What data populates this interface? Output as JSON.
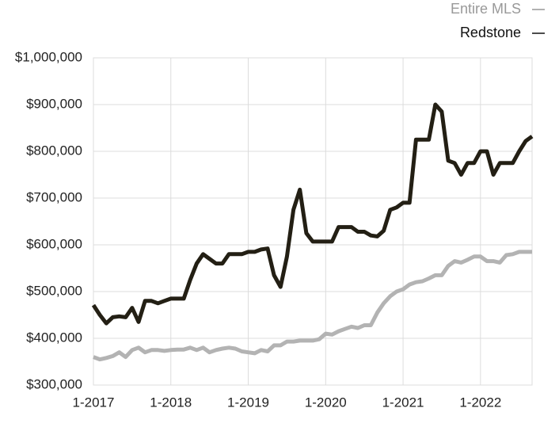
{
  "chart_data": {
    "type": "line",
    "categories": [
      "1-2017",
      null,
      null,
      null,
      null,
      null,
      null,
      null,
      null,
      null,
      null,
      null,
      "1-2018",
      null,
      null,
      null,
      null,
      null,
      null,
      null,
      null,
      null,
      null,
      null,
      "1-2019",
      null,
      null,
      null,
      null,
      null,
      null,
      null,
      null,
      null,
      null,
      null,
      "1-2020",
      null,
      null,
      null,
      null,
      null,
      null,
      null,
      null,
      null,
      null,
      null,
      "1-2021",
      null,
      null,
      null,
      null,
      null,
      null,
      null,
      null,
      null,
      null,
      null,
      "1-2022",
      null,
      null,
      null,
      null,
      null,
      null,
      null,
      null
    ],
    "series": [
      {
        "name": "Entire MLS",
        "color": "#b3b3b3",
        "values": [
          360000,
          355000,
          358000,
          362000,
          370000,
          360000,
          375000,
          380000,
          370000,
          375000,
          375000,
          373000,
          375000,
          376000,
          376000,
          380000,
          375000,
          380000,
          370000,
          375000,
          378000,
          380000,
          378000,
          372000,
          370000,
          368000,
          375000,
          372000,
          385000,
          385000,
          393000,
          393000,
          395000,
          395000,
          395000,
          398000,
          410000,
          408000,
          415000,
          420000,
          425000,
          422000,
          428000,
          428000,
          455000,
          475000,
          490000,
          500000,
          505000,
          515000,
          520000,
          522000,
          528000,
          535000,
          535000,
          555000,
          565000,
          562000,
          568000,
          575000,
          575000,
          565000,
          565000,
          562000,
          578000,
          580000,
          585000,
          585000,
          585000
        ]
      },
      {
        "name": "Redstone",
        "color": "#231f14",
        "values": [
          471000,
          450000,
          432000,
          445000,
          447000,
          445000,
          465000,
          435000,
          480000,
          480000,
          475000,
          480000,
          485000,
          485000,
          485000,
          525000,
          560000,
          580000,
          570000,
          560000,
          560000,
          580000,
          580000,
          580000,
          585000,
          585000,
          590000,
          592000,
          535000,
          510000,
          575000,
          675000,
          718000,
          625000,
          607000,
          607000,
          607000,
          607000,
          638000,
          638000,
          638000,
          628000,
          628000,
          620000,
          618000,
          630000,
          675000,
          680000,
          690000,
          690000,
          825000,
          825000,
          825000,
          900000,
          885000,
          780000,
          775000,
          750000,
          775000,
          775000,
          800000,
          800000,
          750000,
          775000,
          775000,
          775000,
          800000,
          822000,
          832000
        ]
      }
    ],
    "ylim": [
      300000,
      1000000
    ],
    "yticks": [
      {
        "value": 300000,
        "label": "$300,000"
      },
      {
        "value": 400000,
        "label": "$400,000"
      },
      {
        "value": 500000,
        "label": "$500,000"
      },
      {
        "value": 600000,
        "label": "$600,000"
      },
      {
        "value": 700000,
        "label": "$700,000"
      },
      {
        "value": 800000,
        "label": "$800,000"
      },
      {
        "value": 900000,
        "label": "$900,000"
      },
      {
        "value": 1000000,
        "label": "$1,000,000"
      }
    ],
    "grid": true
  }
}
